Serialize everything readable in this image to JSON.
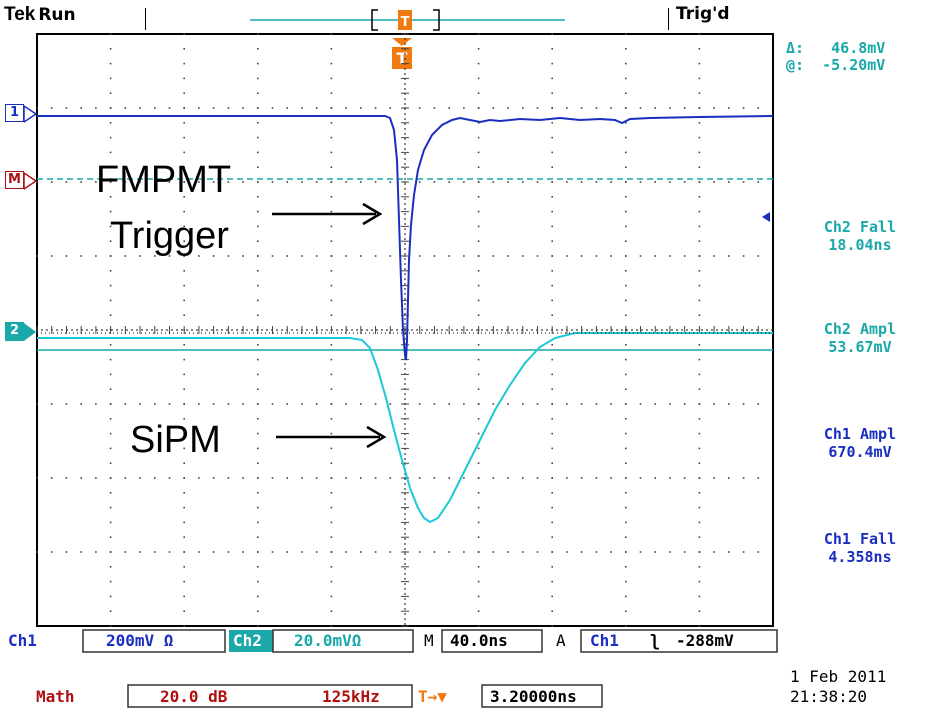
{
  "header": {
    "brand": "Tek",
    "run_state": "Run",
    "trigger_state": "Trig'd",
    "trigger_marker": "T"
  },
  "cursor_readout": {
    "delta_label": "Δ:",
    "delta_value": "46.8mV",
    "at_label": "@:",
    "at_value": "-5.20mV"
  },
  "markers": {
    "ch1": "1",
    "math": "M",
    "ch2": "2"
  },
  "measurements": [
    {
      "label": "Ch2 Fall",
      "value": "18.04ns"
    },
    {
      "label": "Ch2 Ampl",
      "value": "53.67mV"
    },
    {
      "label": "Ch1 Ampl",
      "value": "670.4mV"
    },
    {
      "label": "Ch1 Fall",
      "value": "4.358ns"
    }
  ],
  "annotations": {
    "upper_line1": "FMPMT",
    "upper_line2": "Trigger",
    "lower": "SiPM"
  },
  "status_bar": {
    "ch1_label": "Ch1",
    "ch1_scale": "200mV Ω",
    "ch2_label": "Ch2",
    "ch2_scale": "20.0mVΩ",
    "timebase_label": "M",
    "timebase": "40.0ns",
    "acq_label": "A",
    "trig_source": "Ch1",
    "trig_slope": "ʅ",
    "trig_level": "-288mV"
  },
  "math_bar": {
    "label": "Math",
    "gain": "20.0 dB",
    "freq": "125kHz",
    "delay_icon": "T→▼",
    "delay": "3.20000ns"
  },
  "datetime": {
    "date": "1 Feb 2011",
    "time": "21:38:20"
  },
  "colors": {
    "ch1": "#1a2fc0",
    "ch2": "#1ac8d8",
    "math": "#b01010",
    "trigger": "#f07a10",
    "teal": "#1aa8a8"
  }
}
